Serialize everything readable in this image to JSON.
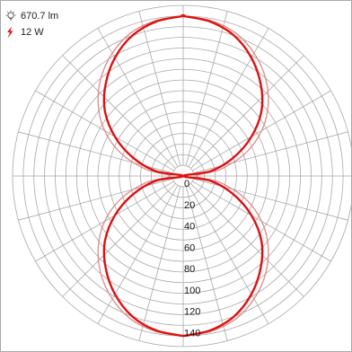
{
  "legend": {
    "luminous_flux": "670.7 lm",
    "power": "12 W",
    "flux_icon": "lightbulb-icon",
    "power_icon": "lightning-icon"
  },
  "colors": {
    "grid": "#a8a8a8",
    "primary_curve": "#dd1111",
    "secondary_curve": "#dd8888",
    "power_icon": "#dd1111"
  },
  "chart_data": {
    "type": "polar",
    "title": "",
    "radial_axis": {
      "min": 0,
      "max": 160,
      "step": 10,
      "labeled_ticks": [
        "0",
        "20",
        "40",
        "60",
        "80",
        "100",
        "120",
        "140"
      ]
    },
    "angular_gridlines_deg": 15,
    "series": [
      {
        "role": "primary",
        "angles_deg": [
          0,
          10,
          20,
          30,
          40,
          50,
          60,
          70,
          80,
          90,
          100,
          110,
          120,
          130,
          140,
          150,
          160,
          170,
          180
        ],
        "values": [
          150,
          147,
          140,
          128,
          113,
          96,
          74,
          50,
          26,
          0,
          26,
          50,
          74,
          96,
          113,
          128,
          140,
          147,
          150
        ]
      },
      {
        "role": "secondary",
        "angles_deg": [
          0,
          10,
          20,
          30,
          40,
          50,
          60,
          70,
          80,
          90,
          100,
          110,
          120,
          130,
          140,
          150,
          160,
          170,
          180
        ],
        "values": [
          150,
          148,
          143,
          133,
          120,
          104,
          85,
          62,
          35,
          12,
          35,
          62,
          85,
          104,
          120,
          133,
          143,
          148,
          150
        ]
      }
    ]
  }
}
